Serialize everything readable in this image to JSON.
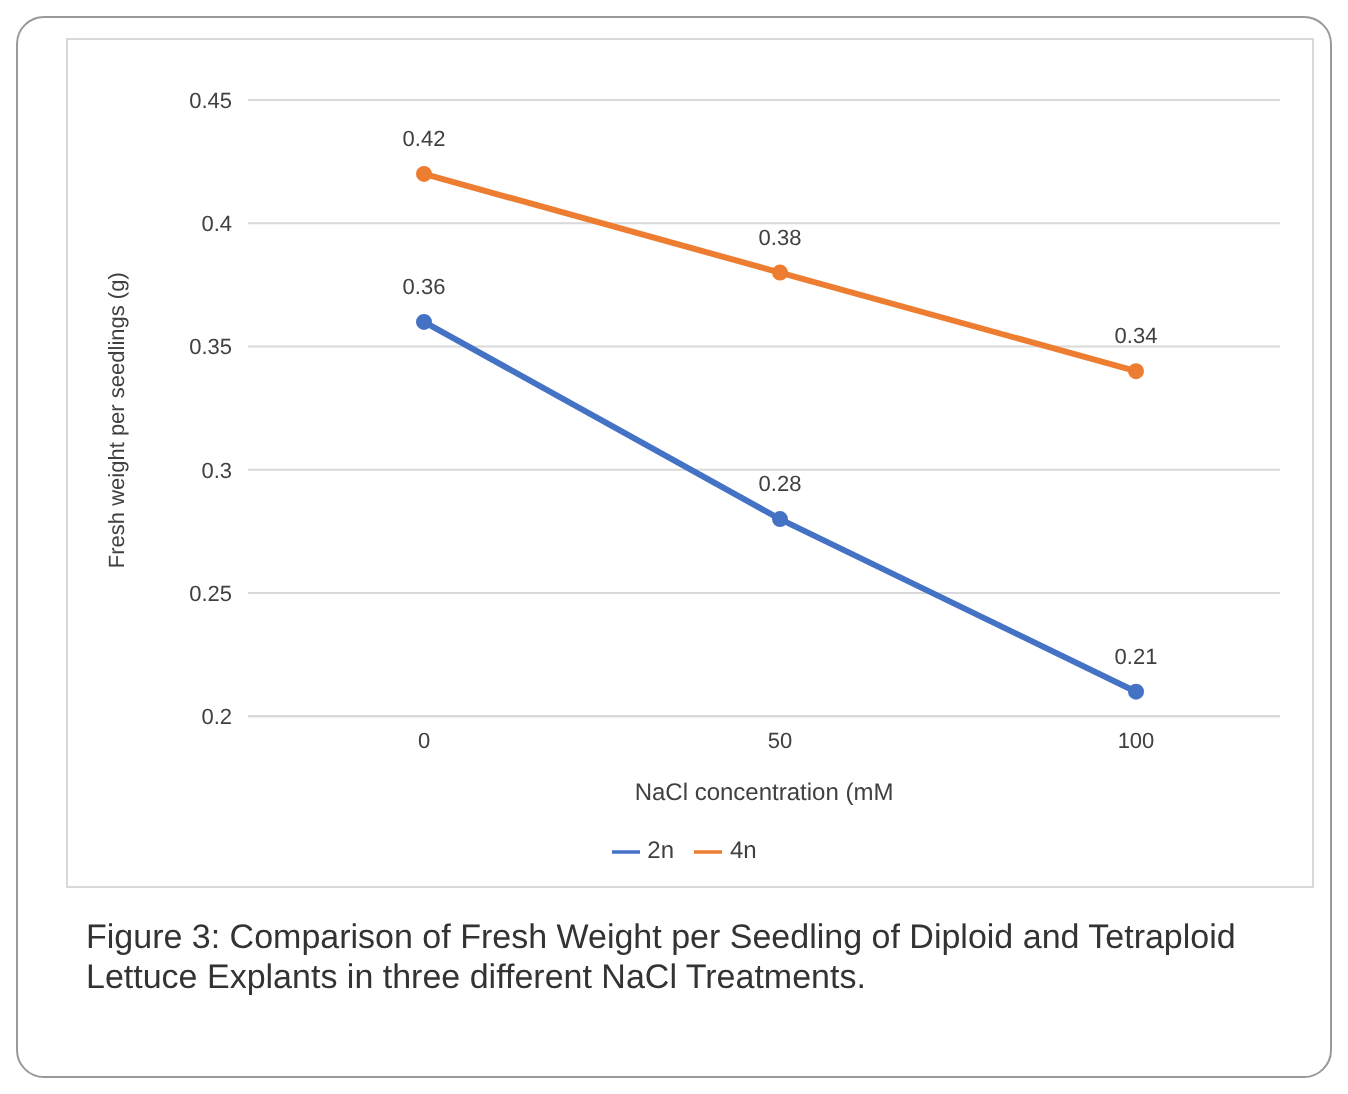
{
  "chart_data": {
    "type": "line",
    "xlabel": "NaCl concentration (mM",
    "ylabel": "Fresh weight per seedlings (g)",
    "categories": [
      "0",
      "50",
      "100"
    ],
    "series": [
      {
        "name": "2n",
        "color": "#4472c4",
        "values": [
          0.36,
          0.28,
          0.21
        ]
      },
      {
        "name": "4n",
        "color": "#ed7d31",
        "values": [
          0.42,
          0.38,
          0.34
        ]
      }
    ],
    "ylim": [
      0.2,
      0.45
    ],
    "yticks": [
      0.2,
      0.25,
      0.3,
      0.35,
      0.4,
      0.45
    ],
    "grid": "y",
    "legend": "bottom",
    "marker": "circle",
    "line_style": "solid",
    "data_labels": true,
    "annotations": [
      "Figure 3: Comparison of Fresh Weight per Seedling of Diploid and Tetraploid Lettuce Explants in three different NaCl Treatments."
    ]
  }
}
